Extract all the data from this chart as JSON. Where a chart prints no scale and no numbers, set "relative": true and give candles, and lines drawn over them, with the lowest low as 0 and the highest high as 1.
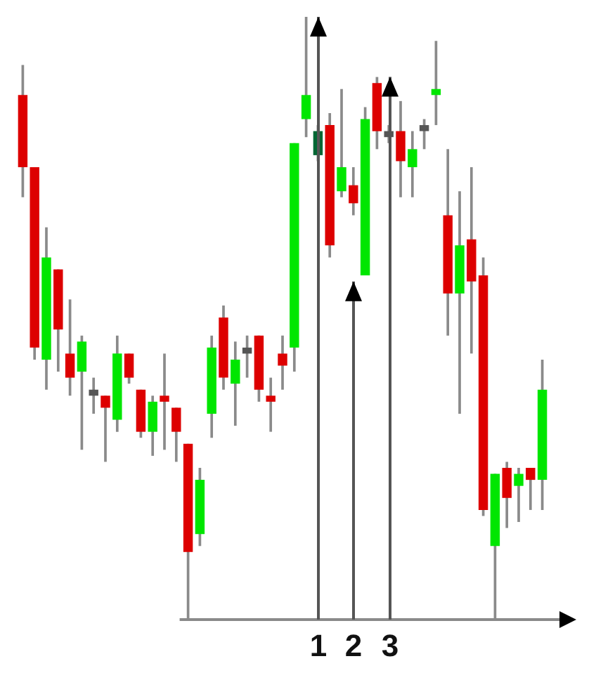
{
  "chart_data": {
    "type": "candlestick",
    "relative": true,
    "categories": [
      null,
      null,
      null,
      null,
      null,
      null,
      null,
      null,
      null,
      null,
      null,
      null,
      null,
      null,
      null,
      null,
      null,
      null,
      null,
      null,
      null,
      null,
      null,
      null,
      null,
      null,
      null,
      null,
      null,
      null,
      null,
      null,
      null,
      null,
      null,
      null,
      null,
      null,
      null,
      null,
      null,
      null,
      null,
      null,
      null
    ],
    "ohlc": [
      [
        0.87,
        0.92,
        0.7,
        0.75
      ],
      [
        0.75,
        0.75,
        0.43,
        0.45
      ],
      [
        0.43,
        0.65,
        0.38,
        0.6
      ],
      [
        0.58,
        0.58,
        0.41,
        0.48
      ],
      [
        0.44,
        0.53,
        0.37,
        0.4
      ],
      [
        0.41,
        0.47,
        0.28,
        0.46
      ],
      [
        0.38,
        0.4,
        0.34,
        0.37
      ],
      [
        0.37,
        0.37,
        0.26,
        0.35
      ],
      [
        0.33,
        0.47,
        0.31,
        0.44
      ],
      [
        0.44,
        0.44,
        0.39,
        0.4
      ],
      [
        0.38,
        0.38,
        0.3,
        0.31
      ],
      [
        0.31,
        0.37,
        0.27,
        0.36
      ],
      [
        0.37,
        0.44,
        0.28,
        0.36
      ],
      [
        0.35,
        0.35,
        0.26,
        0.31
      ],
      [
        0.29,
        0.29,
        0,
        0.11
      ],
      [
        0.14,
        0.25,
        0.12,
        0.23
      ],
      [
        0.34,
        0.47,
        0.3,
        0.45
      ],
      [
        0.5,
        0.52,
        0.38,
        0.4
      ],
      [
        0.39,
        0.46,
        0.32,
        0.43
      ],
      [
        0.45,
        0.47,
        0.4,
        0.44
      ],
      [
        0.47,
        0.47,
        0.36,
        0.38
      ],
      [
        0.37,
        0.4,
        0.31,
        0.36
      ],
      [
        0.44,
        0.47,
        0.38,
        0.42
      ],
      [
        0.45,
        0.79,
        0.41,
        0.79
      ],
      [
        0.83,
        1,
        0.8,
        0.87
      ],
      [
        0.77,
        0.82,
        0.76,
        0.81
      ],
      [
        0.82,
        0.84,
        0.6,
        0.62
      ],
      [
        0.71,
        0.88,
        0.7,
        0.75
      ],
      [
        0.72,
        0.75,
        0.67,
        0.69
      ],
      [
        0.57,
        0.85,
        0.57,
        0.83
      ],
      [
        0.89,
        0.9,
        0.78,
        0.81
      ],
      [
        0.81,
        0.82,
        0.79,
        0.8
      ],
      [
        0.81,
        0.86,
        0.7,
        0.76
      ],
      [
        0.75,
        0.81,
        0.7,
        0.78
      ],
      [
        0.82,
        0.83,
        0.78,
        0.81
      ],
      [
        0.87,
        0.96,
        0.82,
        0.88
      ],
      [
        0.67,
        0.78,
        0.47,
        0.54
      ],
      [
        0.54,
        0.71,
        0.34,
        0.62
      ],
      [
        0.63,
        0.75,
        0.44,
        0.56
      ],
      [
        0.57,
        0.6,
        0.17,
        0.18
      ],
      [
        0.12,
        0.24,
        0,
        0.24
      ],
      [
        0.25,
        0.26,
        0.15,
        0.2
      ],
      [
        0.22,
        0.25,
        0.16,
        0.24
      ],
      [
        0.25,
        0.25,
        0.18,
        0.23
      ],
      [
        0.23,
        0.43,
        0.18,
        0.38
      ]
    ],
    "colors": [
      "#dd0000",
      "#dd0000",
      "#00e600",
      "#dd0000",
      "#dd0000",
      "#00e600",
      "#555555",
      "#dd0000",
      "#00e600",
      "#dd0000",
      "#dd0000",
      "#00e600",
      "#dd0000",
      "#dd0000",
      "#dd0000",
      "#00e600",
      "#00e600",
      "#dd0000",
      "#00e600",
      "#555555",
      "#dd0000",
      "#dd0000",
      "#dd0000",
      "#00e600",
      "#00e600",
      "#006633",
      "#dd0000",
      "#00e600",
      "#dd0000",
      "#00e600",
      "#dd0000",
      "#555555",
      "#dd0000",
      "#00e600",
      "#555555",
      "#00e600",
      "#dd0000",
      "#00e600",
      "#dd0000",
      "#dd0000",
      "#00e600",
      "#dd0000",
      "#00e600",
      "#dd0000",
      "#00e600"
    ],
    "annotations": [
      "1",
      "2",
      "3"
    ]
  }
}
